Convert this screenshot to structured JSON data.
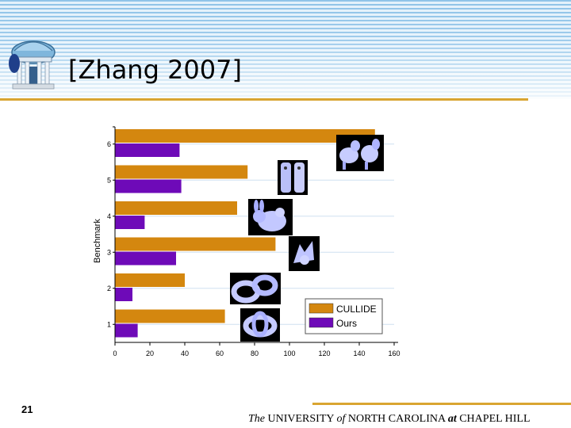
{
  "slide": {
    "title": "[Zhang 2007]",
    "number": "21",
    "footer": {
      "the": "The",
      "university": " UNIVERSITY ",
      "of": "of",
      "state": " NORTH CAROLINA ",
      "at": "at",
      "city": " CHAPEL HILL"
    }
  },
  "colors": {
    "cullide": "#d4870f",
    "ours": "#6e0ab8",
    "accent": "#d9a531"
  },
  "chart_data": {
    "type": "bar",
    "orientation": "horizontal",
    "categories": [
      "1",
      "2",
      "3",
      "4",
      "5",
      "6"
    ],
    "series": [
      {
        "name": "CULLIDE",
        "values": [
          63,
          40,
          92,
          70,
          76,
          149
        ]
      },
      {
        "name": "Ours",
        "values": [
          13,
          10,
          35,
          17,
          38,
          37
        ]
      }
    ],
    "x_ticks": [
      "0",
      "20",
      "40",
      "60",
      "80",
      "100",
      "120",
      "140",
      "160"
    ],
    "xlim": [
      0,
      160
    ],
    "ylabel": "Benchmark",
    "xlabel": "",
    "title": "",
    "grid": true,
    "legend": "bottom-right"
  }
}
